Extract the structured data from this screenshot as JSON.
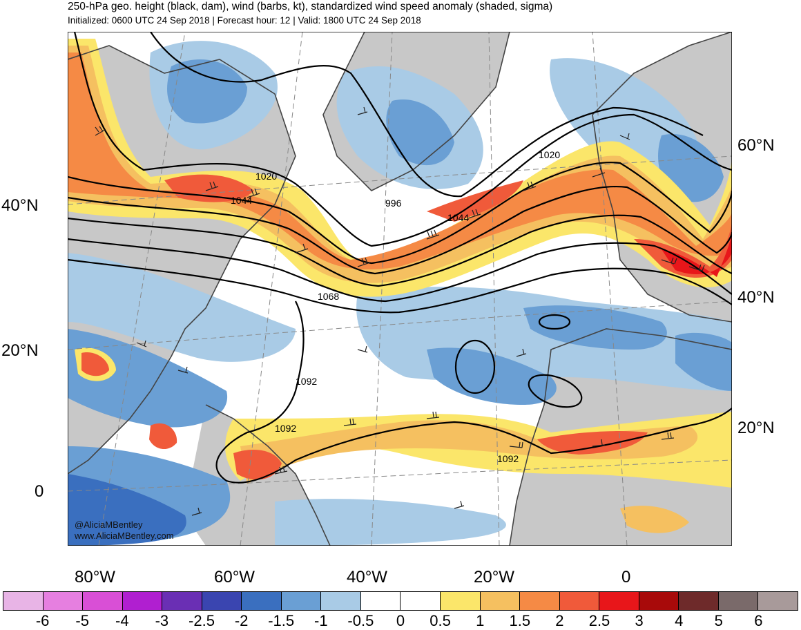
{
  "header": {
    "title": "250-hPa geo. height (black, dam), wind (barbs, kt), standardized wind speed anomaly (shaded, sigma)",
    "subtitle": "Initialized: 0600 UTC 24 Sep 2018 | Forecast hour: 12 | Valid: 1800 UTC 24 Sep 2018"
  },
  "map": {
    "lat_labels_left": [
      "40°N",
      "20°N",
      "0"
    ],
    "lat_labels_right": [
      "60°N",
      "40°N",
      "20°N"
    ],
    "lon_labels": [
      "80°W",
      "60°W",
      "40°W",
      "20°W",
      "0"
    ],
    "contour_labels": [
      "1020",
      "1044",
      "996",
      "1044",
      "1020",
      "1068",
      "1092",
      "1092",
      "1092"
    ],
    "credit_handle": "@AliciaMBentley",
    "credit_url": "www.AliciaMBentley.com",
    "colors": {
      "land": "#c8c8c8",
      "jet_core": "#e8302a",
      "jet_mid": "#f58a45",
      "jet_edge": "#fbe66a",
      "neg_light": "#a9cbe6",
      "neg_mid": "#6a9fd4",
      "neg_dark": "#3a6fbf",
      "contour": "#000000",
      "coast": "#444444"
    }
  },
  "colorbar": {
    "labels": [
      "-6",
      "-5",
      "-4",
      "-3",
      "-2.5",
      "-2",
      "-1.5",
      "-1",
      "-0.5",
      "0",
      "0.5",
      "1",
      "1.5",
      "2",
      "2.5",
      "3",
      "4",
      "5",
      "6"
    ],
    "colors": [
      "#e8b4e6",
      "#e67fe0",
      "#d94fd6",
      "#b01fd0",
      "#6a2fb4",
      "#3a45b0",
      "#3a6fbf",
      "#6a9fd4",
      "#a9cbe6",
      "#ffffff",
      "#ffffff",
      "#fbe66a",
      "#f5c060",
      "#f58a45",
      "#f05a3a",
      "#e8161a",
      "#a80a0a",
      "#6e2a2a",
      "#7a6a6a",
      "#a89a9a"
    ]
  }
}
